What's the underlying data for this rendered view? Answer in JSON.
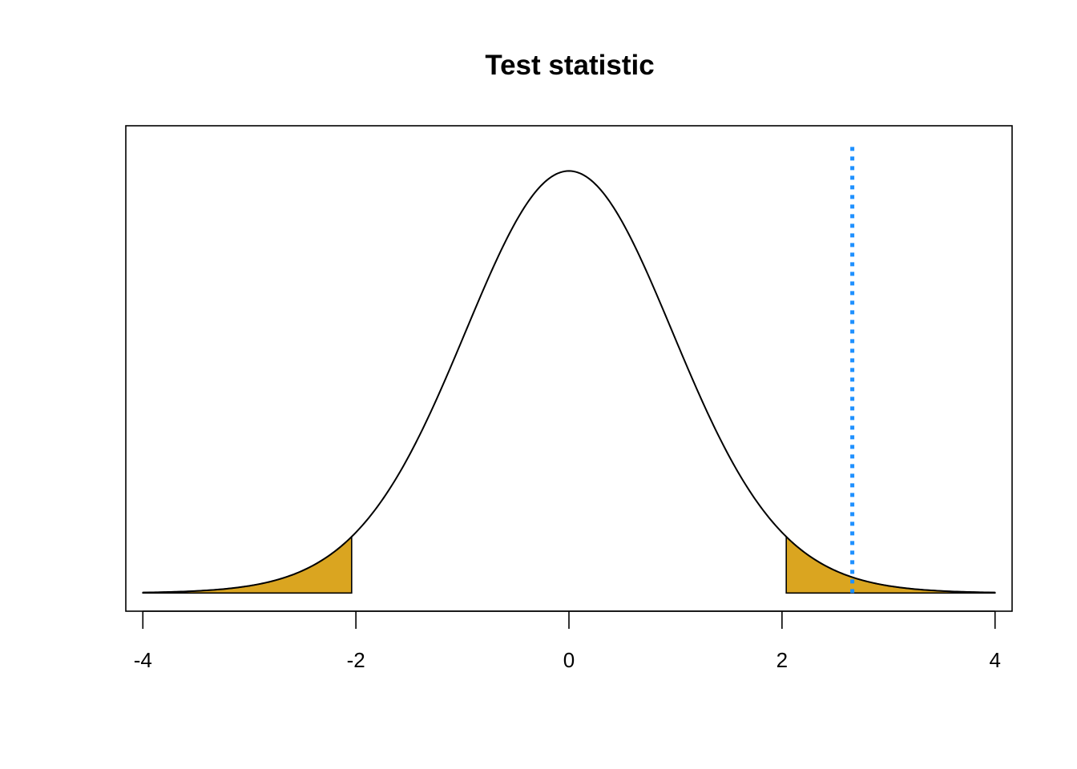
{
  "chart_data": {
    "type": "area",
    "title": "Test statistic",
    "xlabel": "",
    "ylabel": "",
    "xlim": [
      -4.16,
      4.16
    ],
    "ylim": [
      -0.017,
      0.438
    ],
    "x_ticks": [
      -4,
      -2,
      0,
      2,
      4
    ],
    "x_tick_labels": [
      "-4",
      "-2",
      "0",
      "2",
      "4"
    ],
    "grid": false,
    "legend": "none",
    "series": [
      {
        "distribution": "t",
        "df": 30,
        "x_range": [
          -4,
          4
        ],
        "color": "#000000"
      }
    ],
    "shaded_regions": [
      {
        "from": -4,
        "to": -2.04,
        "color": "#DAA520"
      },
      {
        "from": 2.04,
        "to": 4,
        "color": "#DAA520"
      }
    ],
    "observed_line": {
      "x": 2.66,
      "color": "#1E90FF",
      "style": "dotted"
    }
  }
}
